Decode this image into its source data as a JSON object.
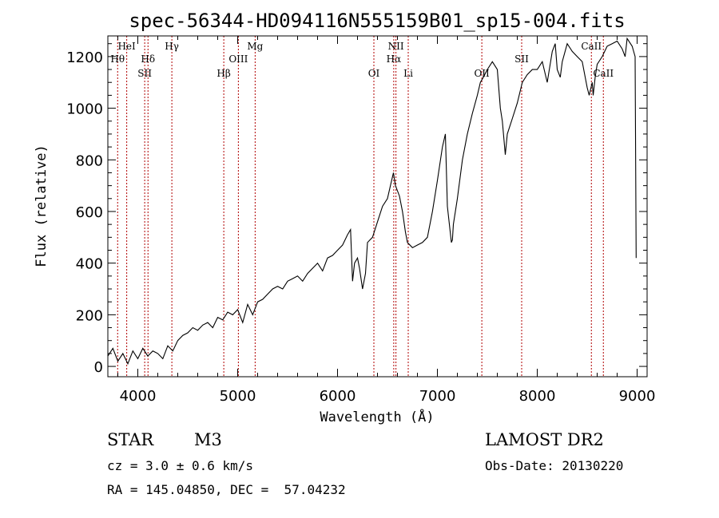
{
  "chart_data": {
    "type": "line",
    "title": "spec-56344-HD094116N555159B01_sp15-004.fits",
    "xlabel": "Wavelength (Å)",
    "ylabel": "Flux (relative)",
    "xlim": [
      3700,
      9100
    ],
    "ylim": [
      -40,
      1280
    ],
    "xticks": [
      4000,
      5000,
      6000,
      7000,
      8000,
      9000
    ],
    "yticks": [
      0,
      200,
      400,
      600,
      800,
      1000,
      1200
    ],
    "grid": false,
    "series": [
      {
        "x": [
          3700,
          3750,
          3800,
          3850,
          3900,
          3950,
          4000,
          4050,
          4100,
          4150,
          4200,
          4250,
          4300,
          4350,
          4400,
          4450,
          4500,
          4550,
          4600,
          4650,
          4700,
          4750,
          4800,
          4850,
          4900,
          4950,
          5000,
          5050,
          5100,
          5150,
          5200,
          5250,
          5300,
          5350,
          5400,
          5450,
          5500,
          5550,
          5600,
          5650,
          5700,
          5750,
          5800,
          5850,
          5900,
          5950,
          6000,
          6050,
          6100,
          6130,
          6150,
          6170,
          6200,
          6220,
          6250,
          6280,
          6300,
          6350,
          6400,
          6450,
          6500,
          6530,
          6560,
          6580,
          6600,
          6620,
          6650,
          6680,
          6700,
          6750,
          6800,
          6850,
          6900,
          6950,
          7000,
          7050,
          7080,
          7100,
          7120,
          7140,
          7150,
          7160,
          7180,
          7200,
          7250,
          7300,
          7350,
          7400,
          7430,
          7460,
          7500,
          7550,
          7600,
          7630,
          7650,
          7680,
          7700,
          7750,
          7800,
          7850,
          7900,
          7950,
          8000,
          8050,
          8100,
          8150,
          8180,
          8200,
          8230,
          8250,
          8300,
          8350,
          8400,
          8450,
          8500,
          8520,
          8550,
          8560,
          8580,
          8600,
          8650,
          8700,
          8750,
          8800,
          8850,
          8880,
          8900,
          8950,
          8980,
          8990
        ],
        "y": [
          40,
          70,
          20,
          50,
          10,
          60,
          30,
          70,
          40,
          60,
          50,
          30,
          80,
          60,
          100,
          120,
          130,
          150,
          140,
          160,
          170,
          150,
          190,
          180,
          210,
          200,
          220,
          170,
          240,
          200,
          250,
          260,
          280,
          300,
          310,
          300,
          330,
          340,
          350,
          330,
          360,
          380,
          400,
          370,
          420,
          430,
          450,
          470,
          510,
          530,
          330,
          400,
          420,
          380,
          300,
          360,
          480,
          500,
          560,
          620,
          650,
          700,
          750,
          700,
          680,
          660,
          600,
          520,
          480,
          460,
          470,
          480,
          500,
          600,
          720,
          850,
          900,
          620,
          550,
          480,
          490,
          550,
          600,
          650,
          800,
          900,
          980,
          1050,
          1100,
          1120,
          1150,
          1180,
          1150,
          1000,
          950,
          820,
          900,
          960,
          1020,
          1100,
          1130,
          1150,
          1150,
          1180,
          1100,
          1220,
          1250,
          1150,
          1120,
          1180,
          1250,
          1220,
          1200,
          1180,
          1080,
          1050,
          1100,
          1050,
          1120,
          1170,
          1200,
          1240,
          1250,
          1260,
          1230,
          1200,
          1270,
          1240,
          1200,
          420
        ]
      }
    ],
    "lines": [
      {
        "wl": 3798,
        "label": "Hθ",
        "row": 2
      },
      {
        "wl": 3889,
        "label": "HeI",
        "row": 1
      },
      {
        "wl": 4069,
        "label": "SII",
        "row": 3
      },
      {
        "wl": 4102,
        "label": "Hδ",
        "row": 2
      },
      {
        "wl": 4341,
        "label": "Hγ",
        "row": 1
      },
      {
        "wl": 4861,
        "label": "Hβ",
        "row": 3
      },
      {
        "wl": 5007,
        "label": "OIII",
        "row": 2
      },
      {
        "wl": 5175,
        "label": "Mg",
        "row": 1
      },
      {
        "wl": 6364,
        "label": "OI",
        "row": 3
      },
      {
        "wl": 6563,
        "label": "Hα",
        "row": 2
      },
      {
        "wl": 6585,
        "label": "NII",
        "row": 1
      },
      {
        "wl": 6708,
        "label": "Li",
        "row": 3
      },
      {
        "wl": 7445,
        "label": "OII",
        "row": 3
      },
      {
        "wl": 7844,
        "label": "SII",
        "row": 2
      },
      {
        "wl": 8542,
        "label": "CaII",
        "row": 1
      },
      {
        "wl": 8662,
        "label": "CaII",
        "row": 3
      }
    ]
  },
  "info": {
    "object_class": "STAR",
    "subclass": "M3",
    "survey": "LAMOST DR2",
    "cz": "cz = 3.0 ± 0.6 km/s",
    "obs_date": "Obs-Date: 20130220",
    "coords": "RA = 145.04850, DEC =  57.04232"
  }
}
